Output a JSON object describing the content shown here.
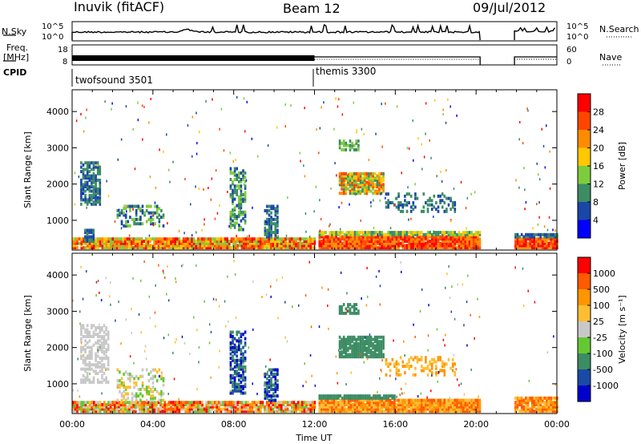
{
  "header": {
    "station": "Inuvik (fitACF)",
    "beam": "Beam 12",
    "date": "09/Jul/2012"
  },
  "left_labels": {
    "nsky": "N.Sky",
    "freq": "Freq.",
    "freq_unit": "[MHz]",
    "cpid": "CPID"
  },
  "right_labels": {
    "nsearch": "N.Search",
    "nave": "Nave"
  },
  "cpid_modes": [
    {
      "name": "twofsound 3501",
      "start_hour": 0
    },
    {
      "name": "themis 3300",
      "start_hour": 12
    }
  ],
  "colors": {
    "power_scale": [
      "#0000ff",
      "#1a47a6",
      "#3c8c64",
      "#7dcc3c",
      "#ffc800",
      "#ff8c00",
      "#ff4600",
      "#ff0000"
    ],
    "velocity_scale": [
      "#ff0000",
      "#ff5a00",
      "#ff9600",
      "#ffbe32",
      "#c8c8c8",
      "#64c832",
      "#3c8c64",
      "#1a4aa6",
      "#0000cc"
    ],
    "axis": "#000000"
  },
  "chart_data": [
    {
      "type": "line",
      "panel": "noise",
      "x": [
        0,
        24
      ],
      "left_axis": {
        "label": "N.Sky",
        "ticks": [
          "10^5",
          "10^0"
        ]
      },
      "right_axis": {
        "label": "N.Search",
        "ticks": [
          "10^5",
          "10^0"
        ]
      }
    },
    {
      "type": "line",
      "panel": "frequency",
      "x": [
        0,
        24
      ],
      "left_axis": {
        "label": "Freq. [MHz]",
        "ticks": [
          "18",
          "8"
        ]
      },
      "right_axis": {
        "label": "Nave",
        "ticks": [
          "60",
          "0"
        ]
      }
    },
    {
      "type": "heatmap",
      "panel": "power",
      "ylabel": "Slant Range [km]",
      "x_range_hours": [
        0,
        24
      ],
      "ylim": [
        180,
        4600
      ],
      "yticks": [
        1000,
        2000,
        3000,
        4000
      ],
      "colorbar": {
        "label": "Power [dB]",
        "ticks": [
          "28",
          "24",
          "20",
          "16",
          "12",
          "8",
          "4"
        ]
      },
      "no_data_hours": [
        [
          20.2,
          21.9
        ]
      ]
    },
    {
      "type": "heatmap",
      "panel": "velocity",
      "ylabel": "Slant Range [km]",
      "xlabel": "Time UT",
      "x_range_hours": [
        0,
        24
      ],
      "ylim": [
        180,
        4600
      ],
      "yticks": [
        1000,
        2000,
        3000,
        4000
      ],
      "xticks": [
        "00:00",
        "04:00",
        "08:00",
        "12:00",
        "16:00",
        "20:00",
        "00:00"
      ],
      "colorbar": {
        "label": "Velocity [m s⁻¹]",
        "ticks": [
          "1000",
          "500",
          "100",
          "25",
          "-25",
          "-100",
          "-500",
          "-1000"
        ]
      },
      "no_data_hours": [
        [
          20.2,
          21.9
        ]
      ]
    }
  ]
}
